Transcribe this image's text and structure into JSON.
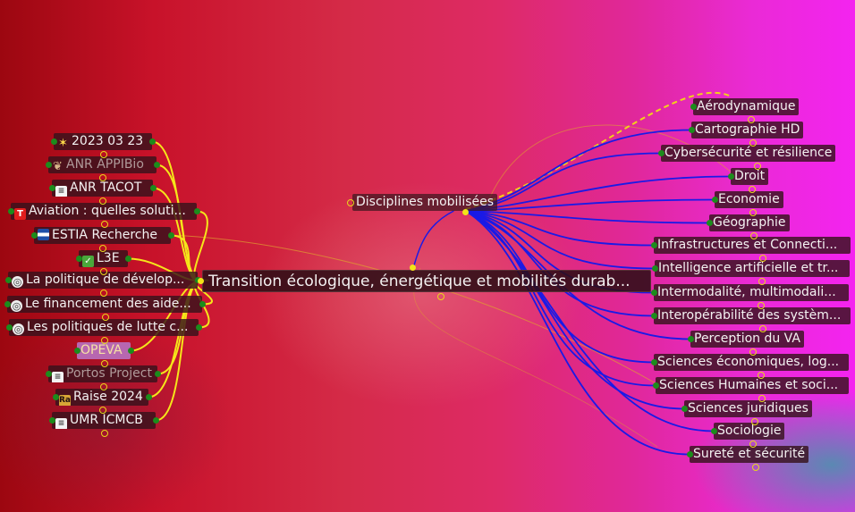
{
  "map": {
    "central": {
      "label": "Transition écologique, énergétique et mobilités durab..."
    },
    "subhub": {
      "label": "Disciplines mobilisées"
    },
    "sources": [
      {
        "label": "2023 03 23",
        "icon": "star-icon",
        "style": "normal"
      },
      {
        "label": "ANR APPIBio",
        "icon": "bio-icon",
        "style": "dim"
      },
      {
        "label": "ANR TACOT",
        "icon": "document-icon",
        "style": "normal"
      },
      {
        "label": "Aviation : quelles soluti...",
        "icon": "t-logo-icon",
        "style": "normal"
      },
      {
        "label": "ESTIA Recherche",
        "icon": "flag-icon",
        "style": "normal"
      },
      {
        "label": "L3E",
        "icon": "check-icon",
        "style": "normal"
      },
      {
        "label": "La politique de dévelop...",
        "icon": "ring-icon",
        "style": "normal"
      },
      {
        "label": "Le financement des aide...",
        "icon": "ring-icon",
        "style": "normal"
      },
      {
        "label": "Les politiques de lutte c...",
        "icon": "ring-icon",
        "style": "normal"
      },
      {
        "label": "OPEVA",
        "icon": "",
        "style": "highlight"
      },
      {
        "label": "Portos Project",
        "icon": "document-icon",
        "style": "dim"
      },
      {
        "label": "Raise 2024",
        "icon": "image-icon",
        "style": "normal"
      },
      {
        "label": "UMR ICMCB",
        "icon": "document-icon",
        "style": "normal"
      }
    ],
    "disciplines": [
      {
        "label": "Aérodynamique"
      },
      {
        "label": "Cartographie HD"
      },
      {
        "label": "Cybersécurité et résilience"
      },
      {
        "label": "Droit"
      },
      {
        "label": "Economie"
      },
      {
        "label": "Géographie"
      },
      {
        "label": "Infrastructures  et Connecti..."
      },
      {
        "label": "Intelligence artificielle et tr..."
      },
      {
        "label": "Intermodalité, multimodali..."
      },
      {
        "label": "Interopérabilité des systèm..."
      },
      {
        "label": "Perception du VA"
      },
      {
        "label": "Sciences économiques, log..."
      },
      {
        "label": "Sciences Humaines et soci..."
      },
      {
        "label": "Sciences juridiques"
      },
      {
        "label": "Sociologie"
      },
      {
        "label": "Sureté et sécurité"
      }
    ],
    "colors": {
      "source_links": "#f5e61a",
      "discipline_links": "#1a1ae6",
      "pending_link": "#f2d21a",
      "cross_links": "#e0a030",
      "ports_green": "#1c8c1c",
      "ports_yellow": "#f2e418"
    }
  }
}
